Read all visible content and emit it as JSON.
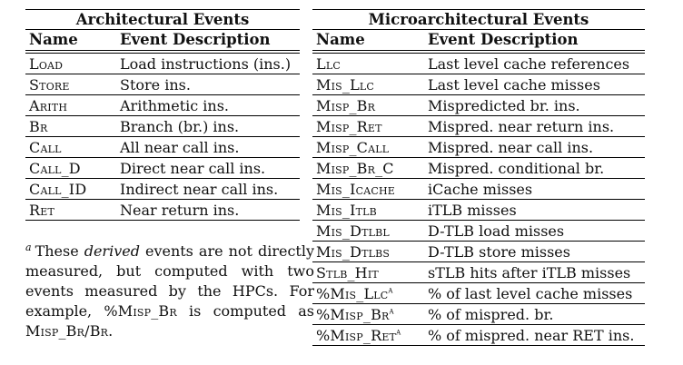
{
  "architectural": {
    "title": "Architectural Events",
    "headers": [
      "Name",
      "Event Description"
    ],
    "rows": [
      {
        "name": "Load",
        "desc": "Load instructions (ins.)"
      },
      {
        "name": "Store",
        "desc": "Store ins."
      },
      {
        "name": "Arith",
        "desc": "Arithmetic ins."
      },
      {
        "name": "Br",
        "desc": "Branch (br.) ins."
      },
      {
        "name": "Call",
        "desc": "All near call ins."
      },
      {
        "name": "Call_D",
        "desc": "Direct near call ins."
      },
      {
        "name": "Call_ID",
        "desc": "Indirect near call ins."
      },
      {
        "name": "Ret",
        "desc": "Near return ins."
      }
    ]
  },
  "microarchitectural": {
    "title": "Microarchitectural Events",
    "headers": [
      "Name",
      "Event Description"
    ],
    "rows": [
      {
        "name": "Llc",
        "sup": "",
        "desc": "Last level cache references"
      },
      {
        "name": "Mis_Llc",
        "sup": "",
        "desc": "Last level cache misses"
      },
      {
        "name": "Misp_Br",
        "sup": "",
        "desc": "Mispredicted br. ins."
      },
      {
        "name": "Misp_Ret",
        "sup": "",
        "desc": "Mispred. near return ins."
      },
      {
        "name": "Misp_Call",
        "sup": "",
        "desc": "Mispred. near call ins."
      },
      {
        "name": "Misp_Br_C",
        "sup": "",
        "desc": "Mispred. conditional br."
      },
      {
        "name": "Mis_Icache",
        "sup": "",
        "desc": "iCache misses"
      },
      {
        "name": "Mis_Itlb",
        "sup": "",
        "desc": "iTLB misses"
      },
      {
        "name": "Mis_Dtlbl",
        "sup": "",
        "desc": "D-TLB load misses"
      },
      {
        "name": "Mis_Dtlbs",
        "sup": "",
        "desc": "D-TLB store misses"
      },
      {
        "name": "Stlb_Hit",
        "sup": "",
        "desc": "sTLB hits after iTLB misses"
      },
      {
        "name": "%Mis_Llc",
        "sup": "a",
        "desc": "% of last level cache misses"
      },
      {
        "name": "%Misp_Br",
        "sup": "a",
        "desc": "% of mispred. br."
      },
      {
        "name": "%Misp_Ret",
        "sup": "a",
        "desc": "% of mispred. near RET ins."
      }
    ]
  },
  "footnote": {
    "mark": "a",
    "text_before": "These ",
    "emphasis": "derived",
    "text_after": " events are not directly measured, but computed with two events measured by the HPCs. For example, ",
    "example_lhs": "%Misp_Br",
    "example_mid": " is computed as ",
    "example_rhs": "Misp_Br/Br",
    "text_end": "."
  }
}
